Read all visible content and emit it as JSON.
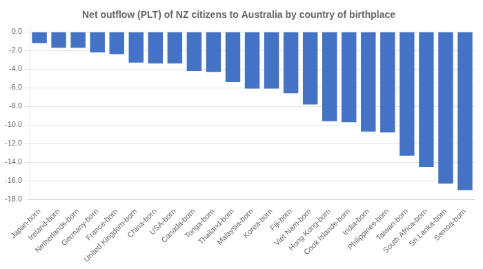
{
  "chart_data": {
    "type": "bar",
    "title": "Net outflow (PLT) of NZ citizens to Australia by country of birthplace",
    "categories": [
      "Japan-born",
      "Ireland-born",
      "Netherlands-born",
      "Germany-born",
      "France-born",
      "United Kingdom-born",
      "China-born",
      "USA-born",
      "Canada-born",
      "Tonga-born",
      "Thailand-born",
      "Malaysia-born",
      "Korea-born",
      "Fiji-born",
      "Viet Nam-born",
      "Hong Kong-born",
      "Cook Islands-born",
      "India-born",
      "Philippines-born",
      "Taiwan-born",
      "South Africa-born",
      "Sri Lanka-born",
      "Samoa-born"
    ],
    "values": [
      -1.2,
      -1.7,
      -1.7,
      -2.2,
      -2.4,
      -3.3,
      -3.4,
      -3.4,
      -4.2,
      -4.3,
      -5.4,
      -6.1,
      -6.1,
      -6.6,
      -7.8,
      -9.6,
      -9.7,
      -10.7,
      -10.8,
      -13.3,
      -14.5,
      -16.3,
      -17.0
    ],
    "color": "#4472C4",
    "ylim": [
      -18.0,
      0.4
    ],
    "yticks": [
      {
        "value": 0.0,
        "label": "0.0"
      },
      {
        "value": -2.0,
        "label": "-2.0"
      },
      {
        "value": -4.0,
        "label": "-4.0"
      },
      {
        "value": -6.0,
        "label": "-6.0"
      },
      {
        "value": -8.0,
        "label": "-8.0"
      },
      {
        "value": -10.0,
        "label": "-10.0"
      },
      {
        "value": -12.0,
        "label": "-12.0"
      },
      {
        "value": -14.0,
        "label": "-14.0"
      },
      {
        "value": -16.0,
        "label": "-16.0"
      },
      {
        "value": -18.0,
        "label": "-18.0"
      }
    ],
    "grid": true
  }
}
